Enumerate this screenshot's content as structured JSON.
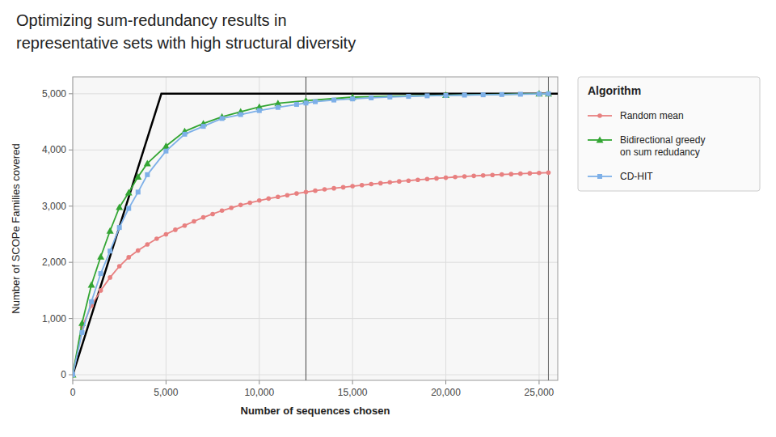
{
  "chart_data": {
    "type": "line",
    "title": "Optimizing sum-redundancy results in",
    "subtitle": "representative sets with high structural diversity",
    "x_label": "Number of sequences chosen",
    "y_label": "Number of SCOPe Families covered",
    "xlim": [
      0,
      26000
    ],
    "ylim": [
      -100,
      5300
    ],
    "xticks": [
      0,
      {
        "value": 5000,
        "label": "5,000"
      },
      {
        "value": 10000,
        "label": "10,000"
      },
      {
        "value": 15000,
        "label": "15,000"
      },
      {
        "value": 20000,
        "label": "20,000"
      },
      {
        "value": 25000,
        "label": "25,000"
      }
    ],
    "yticks": [
      0,
      {
        "value": 1000,
        "label": "1,000"
      },
      {
        "value": 2000,
        "label": "2,000"
      },
      {
        "value": 3000,
        "label": "3,000"
      },
      {
        "value": 4000,
        "label": "4,000"
      },
      {
        "value": 5000,
        "label": "5,000"
      }
    ],
    "grid": true,
    "legend": "right",
    "legend_title": "Algorithm",
    "reference_line": {
      "color": "#000000",
      "x": [
        0,
        4750,
        26000
      ],
      "y": [
        0,
        5000,
        5000
      ]
    },
    "vlines": [
      {
        "x": 12500,
        "color": "#444444"
      },
      {
        "x": 25500,
        "color": "#666666"
      }
    ],
    "series": [
      {
        "name": "Random mean",
        "color": "#E88080",
        "marker": "circle",
        "x": [
          0,
          500,
          1000,
          1500,
          2000,
          2500,
          3000,
          3500,
          4000,
          4500,
          5000,
          5500,
          6000,
          6500,
          7000,
          7500,
          8000,
          8500,
          9000,
          9500,
          10000,
          10500,
          11000,
          11500,
          12000,
          12500,
          13000,
          13500,
          14000,
          14500,
          15000,
          15500,
          16000,
          16500,
          17000,
          17500,
          18000,
          18500,
          19000,
          19500,
          20000,
          20500,
          21000,
          21500,
          22000,
          22500,
          23000,
          23500,
          24000,
          24500,
          25000,
          25500
        ],
        "values": [
          0,
          850,
          1230,
          1500,
          1730,
          1930,
          2090,
          2210,
          2320,
          2420,
          2500,
          2580,
          2655,
          2730,
          2800,
          2860,
          2920,
          2970,
          3020,
          3060,
          3100,
          3135,
          3165,
          3195,
          3225,
          3250,
          3275,
          3298,
          3318,
          3336,
          3355,
          3373,
          3392,
          3408,
          3424,
          3440,
          3454,
          3468,
          3481,
          3494,
          3506,
          3518,
          3528,
          3538,
          3547,
          3555,
          3563,
          3570,
          3577,
          3584,
          3590,
          3596
        ]
      },
      {
        "name": "Bidirectional greedy\non sum redudancy",
        "color": "#33A533",
        "marker": "triangle",
        "x": [
          0,
          500,
          1000,
          1500,
          2000,
          2500,
          3000,
          3500,
          4000,
          5000,
          6000,
          7000,
          8000,
          9000,
          10000,
          11000,
          12500,
          15000,
          20000,
          25000,
          25500
        ],
        "values": [
          0,
          920,
          1600,
          2100,
          2560,
          2980,
          3240,
          3520,
          3760,
          4070,
          4330,
          4470,
          4590,
          4680,
          4765,
          4830,
          4878,
          4940,
          4975,
          5000,
          5000
        ]
      },
      {
        "name": "CD-HIT",
        "color": "#7EB0E8",
        "marker": "square",
        "x": [
          0,
          500,
          1000,
          1500,
          2000,
          2500,
          3000,
          3500,
          4000,
          5000,
          6000,
          7000,
          8000,
          9000,
          10000,
          11000,
          12000,
          12500,
          13000,
          14000,
          15000,
          16000,
          17000,
          18000,
          19000,
          20000,
          21000,
          22000,
          23000,
          24000,
          25000,
          25500
        ],
        "values": [
          0,
          750,
          1300,
          1800,
          2200,
          2620,
          2960,
          3250,
          3560,
          3980,
          4280,
          4420,
          4560,
          4630,
          4700,
          4757,
          4810,
          4835,
          4858,
          4888,
          4908,
          4927,
          4942,
          4953,
          4963,
          4970,
          4976,
          4981,
          4986,
          4991,
          4996,
          5000
        ]
      }
    ]
  }
}
